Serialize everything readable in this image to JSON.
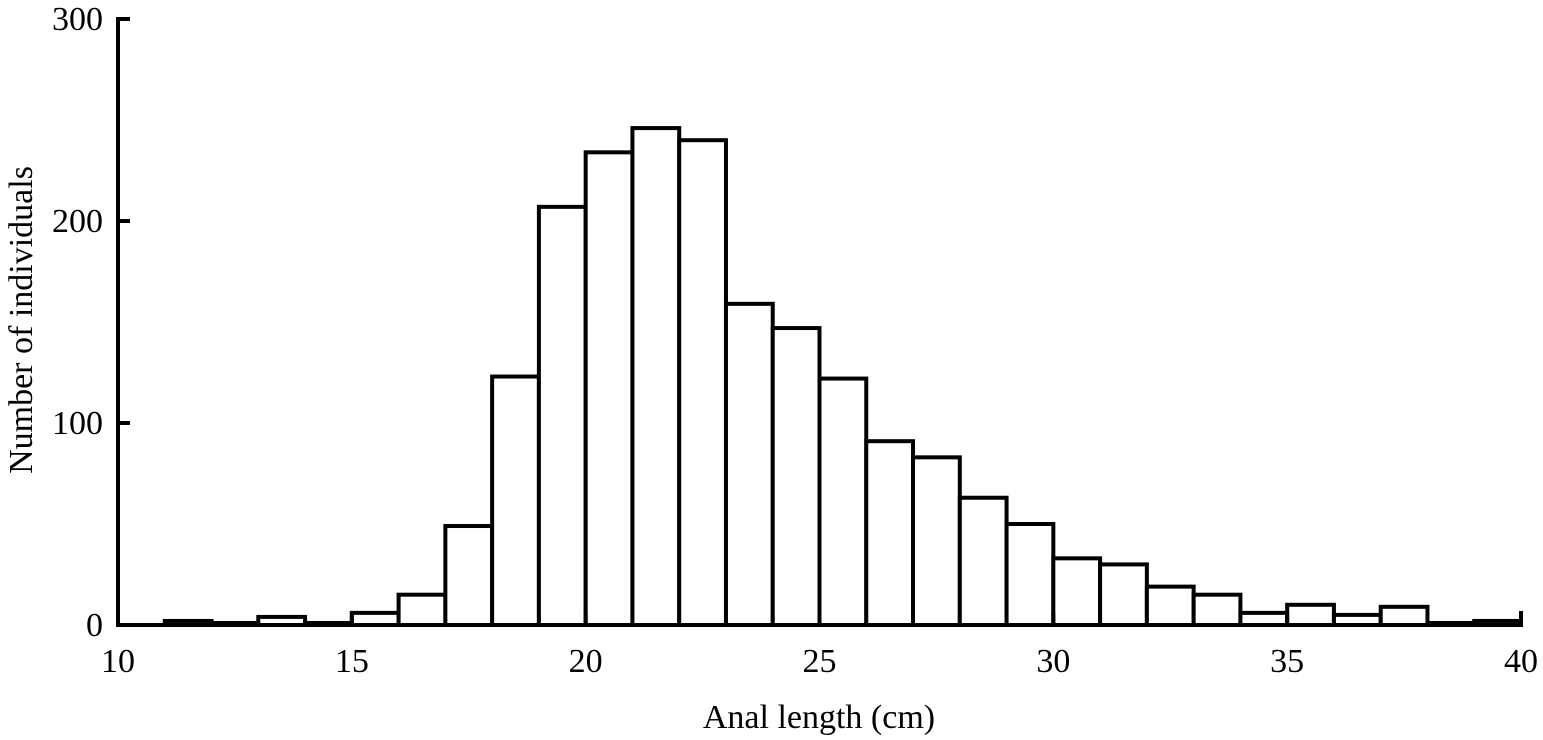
{
  "chart_data": {
    "type": "bar",
    "title": "",
    "xlabel": "Anal length (cm)",
    "ylabel": "Number of individuals",
    "xlim": [
      10,
      40
    ],
    "ylim": [
      0,
      300
    ],
    "x_ticks": [
      "10",
      "15",
      "20",
      "25",
      "30",
      "35",
      "40"
    ],
    "y_ticks": [
      "0",
      "100",
      "200",
      "300"
    ],
    "grid": false,
    "bar_fill": "#ffffff",
    "bar_edge": "#000000",
    "bins": [
      {
        "start": 11,
        "end": 12,
        "count": 2
      },
      {
        "start": 12,
        "end": 13,
        "count": 1
      },
      {
        "start": 13,
        "end": 14,
        "count": 4
      },
      {
        "start": 14,
        "end": 15,
        "count": 1
      },
      {
        "start": 15,
        "end": 16,
        "count": 6
      },
      {
        "start": 16,
        "end": 17,
        "count": 15
      },
      {
        "start": 17,
        "end": 18,
        "count": 49
      },
      {
        "start": 18,
        "end": 19,
        "count": 123
      },
      {
        "start": 19,
        "end": 20,
        "count": 207
      },
      {
        "start": 20,
        "end": 21,
        "count": 234
      },
      {
        "start": 21,
        "end": 22,
        "count": 246
      },
      {
        "start": 22,
        "end": 23,
        "count": 240
      },
      {
        "start": 23,
        "end": 24,
        "count": 159
      },
      {
        "start": 24,
        "end": 25,
        "count": 147
      },
      {
        "start": 25,
        "end": 26,
        "count": 122
      },
      {
        "start": 26,
        "end": 27,
        "count": 91
      },
      {
        "start": 27,
        "end": 28,
        "count": 83
      },
      {
        "start": 28,
        "end": 29,
        "count": 63
      },
      {
        "start": 29,
        "end": 30,
        "count": 50
      },
      {
        "start": 30,
        "end": 31,
        "count": 33
      },
      {
        "start": 31,
        "end": 32,
        "count": 30
      },
      {
        "start": 32,
        "end": 33,
        "count": 19
      },
      {
        "start": 33,
        "end": 34,
        "count": 15
      },
      {
        "start": 34,
        "end": 35,
        "count": 6
      },
      {
        "start": 35,
        "end": 36,
        "count": 10
      },
      {
        "start": 36,
        "end": 37,
        "count": 5
      },
      {
        "start": 37,
        "end": 38,
        "count": 9
      },
      {
        "start": 38,
        "end": 39,
        "count": 1
      },
      {
        "start": 39,
        "end": 40,
        "count": 2
      }
    ]
  }
}
